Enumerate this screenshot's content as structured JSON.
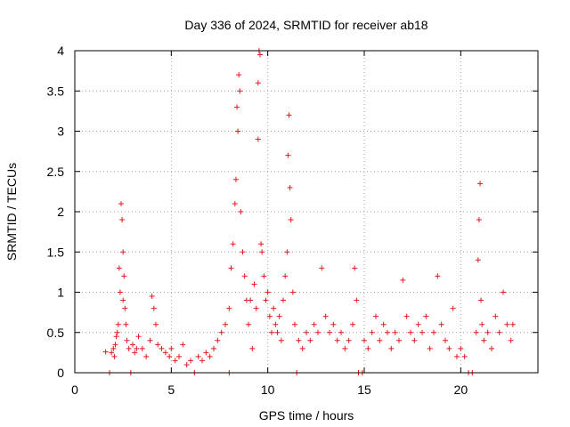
{
  "chart_data": {
    "type": "scatter",
    "title": "Day 336 of 2024, SRMTID for receiver ab18",
    "xlabel": "GPS time / hours",
    "ylabel": "SRMTID / TECUs",
    "xlim": [
      0,
      24.0
    ],
    "ylim": [
      0,
      4
    ],
    "xticks": [
      "0",
      "5",
      "10",
      "15",
      "20"
    ],
    "yticks": [
      "0",
      "0.5",
      "1",
      "1.5",
      "2",
      "2.5",
      "3",
      "3.5",
      "4"
    ],
    "grid": true,
    "marker": "+",
    "marker_color": "#e41a1c",
    "series": [
      {
        "name": "SRMTID",
        "points": [
          [
            1.6,
            0.26
          ],
          [
            1.8,
            0.0
          ],
          [
            1.9,
            0.25
          ],
          [
            2.0,
            0.3
          ],
          [
            2.05,
            0.2
          ],
          [
            2.1,
            0.35
          ],
          [
            2.15,
            0.45
          ],
          [
            2.2,
            0.5
          ],
          [
            2.25,
            0.6
          ],
          [
            2.3,
            1.3
          ],
          [
            2.35,
            1.0
          ],
          [
            2.4,
            2.1
          ],
          [
            2.45,
            1.9
          ],
          [
            2.5,
            1.5
          ],
          [
            2.5,
            0.9
          ],
          [
            2.55,
            1.2
          ],
          [
            2.6,
            0.8
          ],
          [
            2.65,
            0.6
          ],
          [
            2.7,
            0.4
          ],
          [
            2.8,
            0.3
          ],
          [
            2.9,
            0.0
          ],
          [
            3.0,
            0.35
          ],
          [
            3.1,
            0.25
          ],
          [
            3.2,
            0.3
          ],
          [
            3.3,
            0.45
          ],
          [
            3.5,
            0.3
          ],
          [
            3.7,
            0.2
          ],
          [
            3.9,
            0.4
          ],
          [
            4.0,
            0.95
          ],
          [
            4.1,
            0.8
          ],
          [
            4.2,
            0.6
          ],
          [
            4.3,
            0.35
          ],
          [
            4.5,
            0.3
          ],
          [
            4.7,
            0.25
          ],
          [
            4.9,
            0.2
          ],
          [
            5.0,
            0.3
          ],
          [
            5.2,
            0.15
          ],
          [
            5.4,
            0.2
          ],
          [
            5.6,
            0.35
          ],
          [
            5.8,
            0.1
          ],
          [
            6.0,
            0.15
          ],
          [
            6.2,
            0.0
          ],
          [
            6.4,
            0.2
          ],
          [
            6.6,
            0.15
          ],
          [
            6.8,
            0.25
          ],
          [
            7.0,
            0.2
          ],
          [
            7.2,
            0.3
          ],
          [
            7.4,
            0.4
          ],
          [
            7.6,
            0.5
          ],
          [
            7.8,
            0.6
          ],
          [
            8.0,
            0.8
          ],
          [
            8.0,
            0.0
          ],
          [
            8.1,
            1.3
          ],
          [
            8.2,
            1.6
          ],
          [
            8.3,
            2.1
          ],
          [
            8.35,
            2.4
          ],
          [
            8.4,
            3.3
          ],
          [
            8.45,
            3.0
          ],
          [
            8.5,
            3.7
          ],
          [
            8.55,
            3.5
          ],
          [
            8.6,
            2.0
          ],
          [
            8.7,
            1.5
          ],
          [
            8.8,
            1.2
          ],
          [
            8.9,
            0.9
          ],
          [
            9.0,
            0.6
          ],
          [
            9.1,
            0.9
          ],
          [
            9.2,
            0.3
          ],
          [
            9.3,
            1.1
          ],
          [
            9.4,
            0.8
          ],
          [
            9.5,
            2.9
          ],
          [
            9.5,
            3.6
          ],
          [
            9.55,
            4.0
          ],
          [
            9.6,
            3.95
          ],
          [
            9.65,
            1.6
          ],
          [
            9.7,
            1.5
          ],
          [
            9.8,
            1.2
          ],
          [
            9.9,
            0.9
          ],
          [
            10.0,
            1.0
          ],
          [
            10.1,
            0.7
          ],
          [
            10.2,
            0.5
          ],
          [
            10.3,
            0.8
          ],
          [
            10.4,
            0.6
          ],
          [
            10.5,
            0.5
          ],
          [
            10.6,
            0.7
          ],
          [
            10.7,
            0.4
          ],
          [
            10.8,
            0.9
          ],
          [
            10.9,
            1.2
          ],
          [
            11.0,
            1.5
          ],
          [
            11.05,
            2.7
          ],
          [
            11.1,
            3.2
          ],
          [
            11.15,
            2.3
          ],
          [
            11.2,
            1.9
          ],
          [
            11.3,
            1.0
          ],
          [
            11.4,
            0.6
          ],
          [
            11.5,
            0.0
          ],
          [
            11.6,
            0.4
          ],
          [
            11.8,
            0.3
          ],
          [
            12.0,
            0.5
          ],
          [
            12.2,
            0.4
          ],
          [
            12.4,
            0.6
          ],
          [
            12.6,
            0.5
          ],
          [
            12.8,
            1.3
          ],
          [
            13.0,
            0.7
          ],
          [
            13.2,
            0.5
          ],
          [
            13.4,
            0.6
          ],
          [
            13.6,
            0.4
          ],
          [
            13.8,
            0.5
          ],
          [
            14.0,
            0.3
          ],
          [
            14.2,
            0.4
          ],
          [
            14.4,
            0.6
          ],
          [
            14.5,
            1.3
          ],
          [
            14.6,
            0.9
          ],
          [
            14.7,
            0.0
          ],
          [
            14.9,
            0.0
          ],
          [
            15.0,
            0.4
          ],
          [
            15.2,
            0.3
          ],
          [
            15.4,
            0.5
          ],
          [
            15.6,
            0.7
          ],
          [
            15.8,
            0.4
          ],
          [
            16.0,
            0.6
          ],
          [
            16.2,
            0.5
          ],
          [
            16.4,
            0.3
          ],
          [
            16.6,
            0.5
          ],
          [
            16.8,
            0.4
          ],
          [
            17.0,
            1.15
          ],
          [
            17.2,
            0.7
          ],
          [
            17.4,
            0.5
          ],
          [
            17.6,
            0.4
          ],
          [
            17.8,
            0.6
          ],
          [
            18.0,
            0.5
          ],
          [
            18.2,
            0.7
          ],
          [
            18.4,
            0.3
          ],
          [
            18.6,
            0.5
          ],
          [
            18.8,
            1.2
          ],
          [
            19.0,
            0.6
          ],
          [
            19.2,
            0.4
          ],
          [
            19.4,
            0.3
          ],
          [
            19.6,
            0.8
          ],
          [
            19.8,
            0.2
          ],
          [
            20.0,
            0.3
          ],
          [
            20.2,
            0.2
          ],
          [
            20.4,
            0.0
          ],
          [
            20.6,
            0.0
          ],
          [
            20.8,
            0.5
          ],
          [
            20.9,
            1.4
          ],
          [
            20.95,
            1.9
          ],
          [
            21.0,
            2.35
          ],
          [
            21.05,
            0.9
          ],
          [
            21.1,
            0.6
          ],
          [
            21.2,
            0.4
          ],
          [
            21.4,
            0.5
          ],
          [
            21.6,
            0.3
          ],
          [
            21.8,
            0.7
          ],
          [
            22.0,
            0.5
          ],
          [
            22.2,
            1.0
          ],
          [
            22.4,
            0.6
          ],
          [
            22.6,
            0.4
          ],
          [
            22.7,
            0.6
          ]
        ]
      }
    ]
  }
}
